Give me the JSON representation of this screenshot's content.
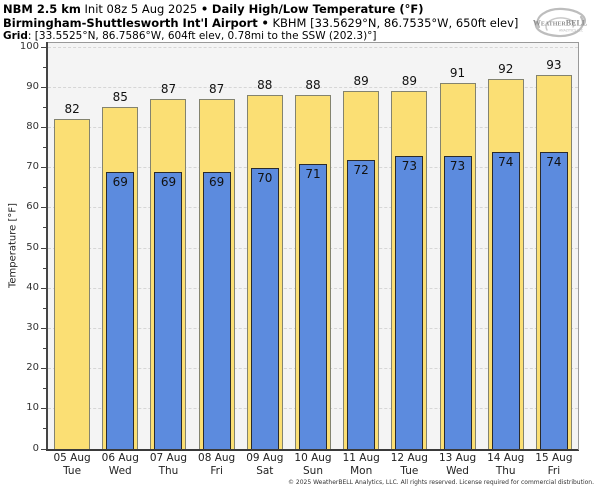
{
  "header": {
    "line1": {
      "model": "NBM 2.5 km",
      "init": "Init 08z 5 Aug 2025",
      "sep": "•",
      "title": "Daily High/Low Temperature (°F)"
    },
    "line2": {
      "station": "Birmingham-Shuttlesworth Int'l Airport",
      "sep": "•",
      "details": "KBHM [33.5629°N, 86.7535°W, 650ft elev]"
    },
    "line3": {
      "label": "Grid",
      "details": ": [33.5525°N, 86.7586°W, 604ft elev, 0.78mi to the SSW (202.3)°]"
    }
  },
  "logo": {
    "text": "WeatherBELL",
    "tagline": "ANALYTICS LLC"
  },
  "chart_data": {
    "type": "bar",
    "title": "Daily High/Low Temperature (°F)",
    "xlabel": "",
    "ylabel": "Temperature [°F]",
    "ylim": [
      0,
      100
    ],
    "ytick_interval": 10,
    "minor_tick_interval": 5,
    "grid": "horizontal-dashed",
    "legend_position": "none",
    "categories": [
      "05 Aug",
      "06 Aug",
      "07 Aug",
      "08 Aug",
      "09 Aug",
      "10 Aug",
      "11 Aug",
      "12 Aug",
      "13 Aug",
      "14 Aug",
      "15 Aug"
    ],
    "weekdays": [
      "Tue",
      "Wed",
      "Thu",
      "Fri",
      "Sat",
      "Sun",
      "Mon",
      "Tue",
      "Wed",
      "Thu",
      "Fri"
    ],
    "series": [
      {
        "name": "Daily High",
        "color": "#FBDF74",
        "edge_color": "#83836f",
        "values": [
          82,
          85,
          87,
          87,
          88,
          88,
          89,
          89,
          91,
          92,
          93
        ]
      },
      {
        "name": "Daily Low",
        "color": "#5C8BDE",
        "edge_color": "#2b2b2b",
        "values": [
          null,
          69,
          69,
          69,
          70,
          71,
          72,
          73,
          73,
          74,
          74
        ]
      }
    ]
  },
  "colors": {
    "plot_background": "#f4f4f4",
    "grid": "#d6d6d6",
    "axis": "#444444",
    "spine_light": "#999999",
    "value_label": "#111111",
    "tick_label": "#333333"
  },
  "footer": "© 2025 WeatherBELL Analytics, LLC. All rights reserved. License required for commercial distribution."
}
